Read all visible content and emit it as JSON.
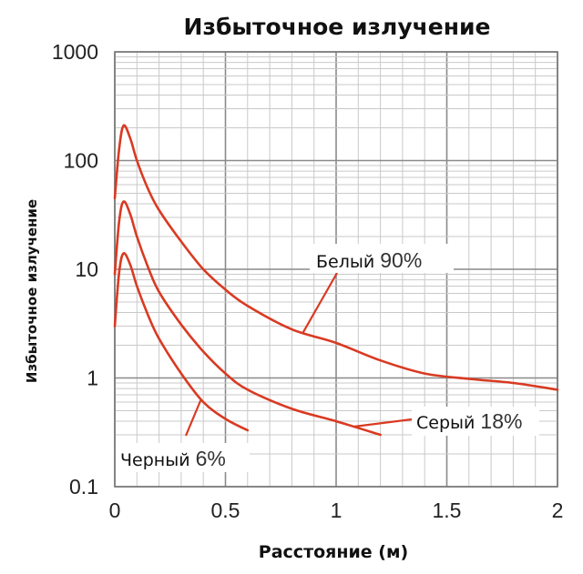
{
  "chart_data": {
    "type": "line",
    "title": "Избыточное излучение",
    "xlabel": "Расстояние (м)",
    "ylabel": "Избыточное излучение",
    "xlim": [
      0,
      2
    ],
    "ylim": [
      0.1,
      1000
    ],
    "yscale": "log",
    "grid": true,
    "x_ticks": [
      "0",
      "0.5",
      "1",
      "1.5",
      "2"
    ],
    "y_ticks": [
      "0.1",
      "1",
      "10",
      "100",
      "1000"
    ],
    "line_color": "#d93a22",
    "series": [
      {
        "label_name": "Белый",
        "label_pct": "90%",
        "x": [
          0.0,
          0.02,
          0.04,
          0.07,
          0.1,
          0.15,
          0.2,
          0.3,
          0.4,
          0.5,
          0.6,
          0.8,
          1.0,
          1.2,
          1.4,
          1.6,
          1.8,
          2.0
        ],
        "y": [
          45,
          130,
          210,
          160,
          100,
          55,
          35,
          18,
          10,
          6.5,
          4.6,
          2.8,
          2.1,
          1.45,
          1.1,
          0.98,
          0.9,
          0.78
        ]
      },
      {
        "label_name": "Серый",
        "label_pct": "18%",
        "x": [
          0.0,
          0.02,
          0.04,
          0.07,
          0.1,
          0.15,
          0.2,
          0.3,
          0.4,
          0.5,
          0.6,
          0.8,
          1.0,
          1.2
        ],
        "y": [
          9,
          28,
          42,
          32,
          20,
          10.5,
          6.2,
          3.1,
          1.75,
          1.1,
          0.78,
          0.52,
          0.4,
          0.3
        ]
      },
      {
        "label_name": "Черный",
        "label_pct": "6%",
        "x": [
          0.0,
          0.02,
          0.04,
          0.07,
          0.1,
          0.15,
          0.2,
          0.3,
          0.4,
          0.5,
          0.6
        ],
        "y": [
          3,
          9.5,
          14,
          11,
          7,
          3.8,
          2.3,
          1.1,
          0.6,
          0.42,
          0.33
        ]
      }
    ]
  }
}
